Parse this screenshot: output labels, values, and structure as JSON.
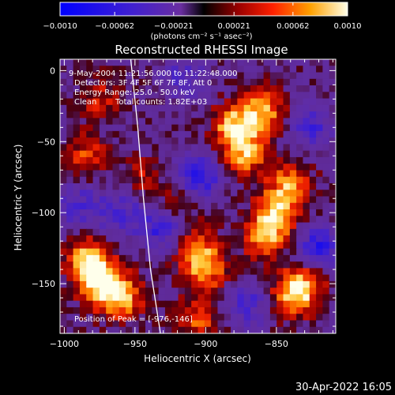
{
  "chart_data": {
    "type": "heatmap",
    "title": "Reconstructed RHESSI Image",
    "xlabel": "Heliocentric X (arcsec)",
    "ylabel": "Heliocentric Y (arcsec)",
    "xlim": [
      -1003,
      -808
    ],
    "ylim": [
      -185,
      8
    ],
    "x_ticks": [
      -1000,
      -950,
      -900,
      -850
    ],
    "x_tick_labels": [
      "−1000",
      "−950",
      "−900",
      "−850"
    ],
    "y_ticks": [
      0,
      -50,
      -100,
      -150
    ],
    "y_tick_labels": [
      "0",
      "−50",
      "−100",
      "−150"
    ],
    "colorbar": {
      "range": [
        -0.001,
        0.001
      ],
      "ticks": [
        -0.001,
        -0.00062,
        -0.00021,
        0.00021,
        0.00062,
        0.001
      ],
      "tick_labels": [
        "−0.0010",
        "−0.00062",
        "−0.00021",
        "0.00021",
        "0.00062",
        "0.0010"
      ],
      "unit_label": "(photons cm⁻² s⁻¹ asec⁻²)"
    },
    "annotations": {
      "time_range": "9-May-2004 11:21:56.000 to 11:22:48.000",
      "detectors": "Detectors: 3F 4F 5F 6F 7F 8F, Att 0",
      "energy_range": "Energy Range: 25.0 - 50.0 keV",
      "clean": "Clean",
      "total_counts": "Total counts: 1.82E+03",
      "peak": "Position of Peak = [-976,-146]"
    },
    "peak_position": [
      -976,
      -146
    ],
    "limb_curve": [
      [
        -953,
        8
      ],
      [
        -948,
        -40
      ],
      [
        -944,
        -90
      ],
      [
        -939,
        -140
      ],
      [
        -932,
        -185
      ]
    ],
    "bright_sources": [
      {
        "x": -975,
        "y": -148,
        "intensity": 1.0
      },
      {
        "x": -985,
        "y": -132,
        "intensity": 0.75
      },
      {
        "x": -960,
        "y": -160,
        "intensity": 0.8
      },
      {
        "x": -880,
        "y": -40,
        "intensity": 0.85
      },
      {
        "x": -860,
        "y": -28,
        "intensity": 0.8
      },
      {
        "x": -872,
        "y": -60,
        "intensity": 0.7
      },
      {
        "x": -850,
        "y": -100,
        "intensity": 0.8
      },
      {
        "x": -858,
        "y": -118,
        "intensity": 0.7
      },
      {
        "x": -840,
        "y": -80,
        "intensity": 0.65
      },
      {
        "x": -900,
        "y": -140,
        "intensity": 0.7
      },
      {
        "x": -908,
        "y": -125,
        "intensity": 0.6
      },
      {
        "x": -985,
        "y": -60,
        "intensity": 0.5
      },
      {
        "x": -920,
        "y": -95,
        "intensity": 0.45
      },
      {
        "x": -840,
        "y": -160,
        "intensity": 0.7
      },
      {
        "x": -830,
        "y": -150,
        "intensity": 0.6
      },
      {
        "x": -975,
        "y": -20,
        "intensity": 0.4
      },
      {
        "x": -905,
        "y": -175,
        "intensity": 0.55
      },
      {
        "x": -945,
        "y": -75,
        "intensity": 0.35
      }
    ],
    "negative_sources": [
      {
        "x": -905,
        "y": -75,
        "intensity": 0.9
      },
      {
        "x": -930,
        "y": -110,
        "intensity": 0.8
      },
      {
        "x": -825,
        "y": -40,
        "intensity": 0.6
      },
      {
        "x": -820,
        "y": -125,
        "intensity": 0.8
      },
      {
        "x": -870,
        "y": -165,
        "intensity": 0.6
      },
      {
        "x": -960,
        "y": -100,
        "intensity": 0.6
      },
      {
        "x": -990,
        "y": -95,
        "intensity": 0.55
      },
      {
        "x": -915,
        "y": -5,
        "intensity": 0.5
      }
    ]
  },
  "footer": {
    "date": "30-Apr-2022 16:05"
  }
}
